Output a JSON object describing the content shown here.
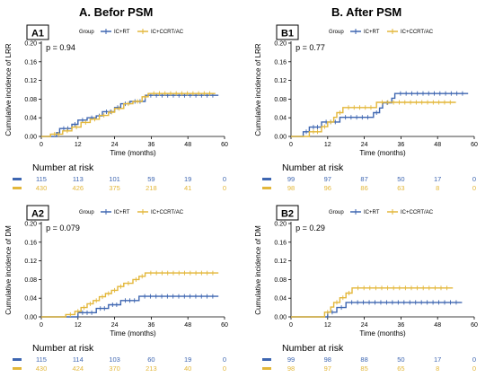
{
  "column_titles": {
    "left": "A. Befor PSM",
    "right": "B. After PSM"
  },
  "legend": {
    "group_label": "Group",
    "series_names": [
      "IC+RT",
      "IC+CCRT/AC"
    ]
  },
  "colors": {
    "IC+RT": "#3E66B1",
    "IC+CCRT/AC": "#E3B73A"
  },
  "risk_title": "Number at risk",
  "chart_data": [
    {
      "id": "A1",
      "type": "line",
      "subtitle": "p = 0.94",
      "xlabel": "Time (months)",
      "ylabel": "Cumulative incidence of LRR",
      "xlim": [
        0,
        60
      ],
      "ylim": [
        0,
        0.2
      ],
      "x_ticks": [
        "0",
        "12",
        "24",
        "36",
        "48",
        "60"
      ],
      "y_ticks": [
        "0.00",
        "0.04",
        "0.08",
        "0.12",
        "0.16",
        "0.20"
      ],
      "grid": false,
      "legend_position": "top",
      "series": [
        {
          "name": "IC+RT",
          "points": [
            [
              0,
              0
            ],
            [
              5,
              0
            ],
            [
              5,
              0.008
            ],
            [
              6,
              0.008
            ],
            [
              6,
              0.017
            ],
            [
              10,
              0.017
            ],
            [
              10,
              0.026
            ],
            [
              12,
              0.026
            ],
            [
              12,
              0.035
            ],
            [
              15,
              0.035
            ],
            [
              15,
              0.04
            ],
            [
              18,
              0.04
            ],
            [
              18,
              0.044
            ],
            [
              20,
              0.044
            ],
            [
              20,
              0.053
            ],
            [
              24,
              0.053
            ],
            [
              24,
              0.062
            ],
            [
              26,
              0.062
            ],
            [
              26,
              0.07
            ],
            [
              29,
              0.07
            ],
            [
              29,
              0.075
            ],
            [
              34,
              0.075
            ],
            [
              34,
              0.088
            ],
            [
              58,
              0.088
            ]
          ]
        },
        {
          "name": "IC+CCRT/AC",
          "points": [
            [
              0,
              0
            ],
            [
              3,
              0
            ],
            [
              3,
              0.005
            ],
            [
              7,
              0.005
            ],
            [
              7,
              0.012
            ],
            [
              10,
              0.012
            ],
            [
              10,
              0.02
            ],
            [
              13,
              0.02
            ],
            [
              13,
              0.03
            ],
            [
              16,
              0.03
            ],
            [
              16,
              0.037
            ],
            [
              19,
              0.037
            ],
            [
              19,
              0.045
            ],
            [
              22,
              0.045
            ],
            [
              22,
              0.052
            ],
            [
              24,
              0.052
            ],
            [
              24,
              0.06
            ],
            [
              27,
              0.06
            ],
            [
              27,
              0.07
            ],
            [
              30,
              0.07
            ],
            [
              30,
              0.075
            ],
            [
              33,
              0.075
            ],
            [
              33,
              0.085
            ],
            [
              35,
              0.085
            ],
            [
              35,
              0.092
            ],
            [
              57,
              0.092
            ]
          ]
        }
      ],
      "risk_table": {
        "IC+RT": [
          "115",
          "113",
          "101",
          "59",
          "19",
          "0"
        ],
        "IC+CCRT/AC": [
          "430",
          "426",
          "375",
          "218",
          "41",
          "0"
        ]
      }
    },
    {
      "id": "B1",
      "type": "line",
      "subtitle": "p = 0.77",
      "xlabel": "Time (months)",
      "ylabel": "Cumulative incidence of LRR",
      "xlim": [
        0,
        60
      ],
      "ylim": [
        0,
        0.2
      ],
      "x_ticks": [
        "0",
        "12",
        "24",
        "36",
        "48",
        "60"
      ],
      "y_ticks": [
        "0.00",
        "0.04",
        "0.08",
        "0.12",
        "0.16",
        "0.20"
      ],
      "grid": false,
      "legend_position": "top",
      "series": [
        {
          "name": "IC+RT",
          "points": [
            [
              0,
              0
            ],
            [
              4,
              0
            ],
            [
              4,
              0.01
            ],
            [
              6,
              0.01
            ],
            [
              6,
              0.02
            ],
            [
              10,
              0.02
            ],
            [
              10,
              0.031
            ],
            [
              16,
              0.031
            ],
            [
              16,
              0.041
            ],
            [
              27,
              0.041
            ],
            [
              27,
              0.051
            ],
            [
              29,
              0.051
            ],
            [
              29,
              0.061
            ],
            [
              30,
              0.061
            ],
            [
              30,
              0.072
            ],
            [
              33,
              0.072
            ],
            [
              33,
              0.082
            ],
            [
              34,
              0.082
            ],
            [
              34,
              0.092
            ],
            [
              58,
              0.092
            ]
          ]
        },
        {
          "name": "IC+CCRT/AC",
          "points": [
            [
              0,
              0
            ],
            [
              6,
              0
            ],
            [
              6,
              0.01
            ],
            [
              10,
              0.01
            ],
            [
              10,
              0.021
            ],
            [
              12,
              0.021
            ],
            [
              12,
              0.031
            ],
            [
              14,
              0.031
            ],
            [
              14,
              0.041
            ],
            [
              15,
              0.041
            ],
            [
              15,
              0.051
            ],
            [
              17,
              0.051
            ],
            [
              17,
              0.062
            ],
            [
              28,
              0.062
            ],
            [
              28,
              0.073
            ],
            [
              54,
              0.073
            ]
          ]
        }
      ],
      "risk_table": {
        "IC+RT": [
          "99",
          "97",
          "87",
          "50",
          "17",
          "0"
        ],
        "IC+CCRT/AC": [
          "98",
          "96",
          "86",
          "63",
          "8",
          "0"
        ]
      }
    },
    {
      "id": "A2",
      "type": "line",
      "subtitle": "p = 0.079",
      "xlabel": "Time (months)",
      "ylabel": "Cumulative incidence of DM",
      "xlim": [
        0,
        60
      ],
      "ylim": [
        0,
        0.2
      ],
      "x_ticks": [
        "0",
        "12",
        "24",
        "36",
        "48",
        "60"
      ],
      "y_ticks": [
        "0.00",
        "0.04",
        "0.08",
        "0.12",
        "0.16",
        "0.20"
      ],
      "grid": false,
      "legend_position": "top",
      "series": [
        {
          "name": "IC+RT",
          "points": [
            [
              0,
              0
            ],
            [
              12,
              0
            ],
            [
              12,
              0.009
            ],
            [
              18,
              0.009
            ],
            [
              18,
              0.018
            ],
            [
              22,
              0.018
            ],
            [
              22,
              0.026
            ],
            [
              26,
              0.026
            ],
            [
              26,
              0.035
            ],
            [
              32,
              0.035
            ],
            [
              32,
              0.044
            ],
            [
              58,
              0.044
            ]
          ]
        },
        {
          "name": "IC+CCRT/AC",
          "points": [
            [
              0,
              0
            ],
            [
              8,
              0
            ],
            [
              8,
              0.005
            ],
            [
              11,
              0.005
            ],
            [
              11,
              0.012
            ],
            [
              13,
              0.012
            ],
            [
              13,
              0.02
            ],
            [
              15,
              0.02
            ],
            [
              15,
              0.028
            ],
            [
              17,
              0.028
            ],
            [
              17,
              0.035
            ],
            [
              19,
              0.035
            ],
            [
              19,
              0.043
            ],
            [
              21,
              0.043
            ],
            [
              21,
              0.05
            ],
            [
              23,
              0.05
            ],
            [
              23,
              0.057
            ],
            [
              25,
              0.057
            ],
            [
              25,
              0.065
            ],
            [
              27,
              0.065
            ],
            [
              27,
              0.072
            ],
            [
              30,
              0.072
            ],
            [
              30,
              0.08
            ],
            [
              32,
              0.08
            ],
            [
              32,
              0.087
            ],
            [
              34,
              0.087
            ],
            [
              34,
              0.094
            ],
            [
              58,
              0.094
            ]
          ]
        }
      ],
      "risk_table": {
        "IC+RT": [
          "115",
          "114",
          "103",
          "60",
          "19",
          "0"
        ],
        "IC+CCRT/AC": [
          "430",
          "424",
          "370",
          "213",
          "40",
          "0"
        ]
      }
    },
    {
      "id": "B2",
      "type": "line",
      "subtitle": "p = 0.29",
      "xlabel": "Time (months)",
      "ylabel": "Cumulative incidence of DM",
      "xlim": [
        0,
        60
      ],
      "ylim": [
        0,
        0.2
      ],
      "x_ticks": [
        "0",
        "12",
        "24",
        "36",
        "48",
        "60"
      ],
      "y_ticks": [
        "0.00",
        "0.04",
        "0.08",
        "0.12",
        "0.16",
        "0.20"
      ],
      "grid": false,
      "legend_position": "top",
      "series": [
        {
          "name": "IC+RT",
          "points": [
            [
              0,
              0
            ],
            [
              12,
              0
            ],
            [
              12,
              0.01
            ],
            [
              15,
              0.01
            ],
            [
              15,
              0.02
            ],
            [
              18,
              0.02
            ],
            [
              18,
              0.031
            ],
            [
              56,
              0.031
            ]
          ]
        },
        {
          "name": "IC+CCRT/AC",
          "points": [
            [
              0,
              0
            ],
            [
              11,
              0
            ],
            [
              11,
              0.01
            ],
            [
              13,
              0.01
            ],
            [
              13,
              0.021
            ],
            [
              14,
              0.021
            ],
            [
              14,
              0.031
            ],
            [
              16,
              0.031
            ],
            [
              16,
              0.041
            ],
            [
              18,
              0.041
            ],
            [
              18,
              0.051
            ],
            [
              20,
              0.051
            ],
            [
              20,
              0.062
            ],
            [
              53,
              0.062
            ]
          ]
        }
      ],
      "risk_table": {
        "IC+RT": [
          "99",
          "98",
          "88",
          "50",
          "17",
          "0"
        ],
        "IC+CCRT/AC": [
          "98",
          "97",
          "85",
          "65",
          "8",
          "0"
        ]
      }
    }
  ]
}
